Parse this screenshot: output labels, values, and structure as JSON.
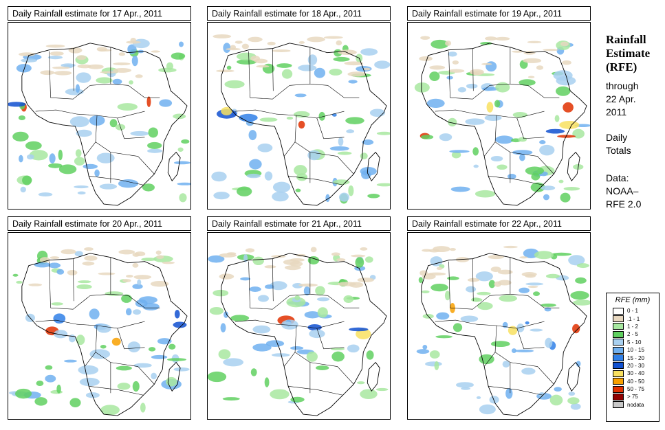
{
  "panels": [
    {
      "title": "Daily Rainfall estimate for  17 Apr., 2011"
    },
    {
      "title": "Daily Rainfall estimate for  18 Apr., 2011"
    },
    {
      "title": "Daily Rainfall estimate for  19 Apr., 2011"
    },
    {
      "title": "Daily Rainfall estimate for  20 Apr., 2011"
    },
    {
      "title": "Daily Rainfall estimate for  21 Apr., 2011"
    },
    {
      "title": "Daily Rainfall estimate for  22 Apr., 2011"
    }
  ],
  "sidebar": {
    "title_line1": "Rainfall",
    "title_line2": "Estimate",
    "title_line3": "(RFE)",
    "through": "through",
    "date_line1": "22 Apr.",
    "date_line2": "2011",
    "totals_line1": "Daily",
    "totals_line2": "Totals",
    "source_line1": "Data:",
    "source_line2": "NOAA–",
    "source_line3": "RFE 2.0"
  },
  "legend": {
    "title": "RFE (mm)",
    "items": [
      {
        "label": "0 - 1",
        "color": "#ffffff"
      },
      {
        "label": ".1 - 1",
        "color": "#e8d8c0"
      },
      {
        "label": "1 - 2",
        "color": "#a8e8a0"
      },
      {
        "label": "2 - 5",
        "color": "#60d060"
      },
      {
        "label": "5 - 10",
        "color": "#a8d0f0"
      },
      {
        "label": "10 - 15",
        "color": "#70b0f0"
      },
      {
        "label": "15 - 20",
        "color": "#3080e8"
      },
      {
        "label": "20 - 30",
        "color": "#1050d0"
      },
      {
        "label": "30 - 40",
        "color": "#f8e060"
      },
      {
        "label": "40 - 50",
        "color": "#f8a000"
      },
      {
        "label": "50 - 75",
        "color": "#e03000"
      },
      {
        "label": "> 75",
        "color": "#900000"
      },
      {
        "label": "nodata",
        "color": "#c8c8c8"
      }
    ]
  }
}
